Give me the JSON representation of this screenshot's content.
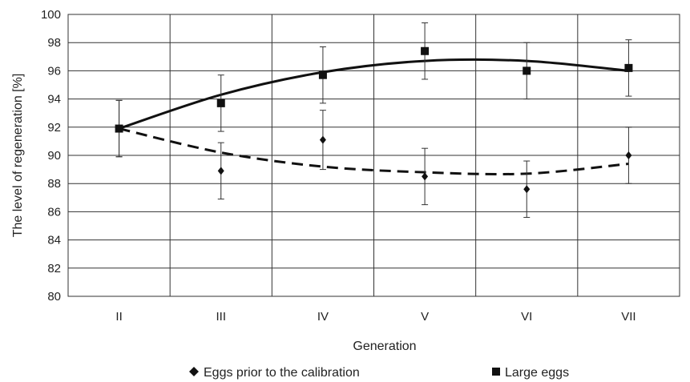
{
  "chart_data": {
    "type": "scatter",
    "xlabel": "Generation",
    "ylabel": "The level of regeneration [%]",
    "categories": [
      "II",
      "III",
      "IV",
      "V",
      "VI",
      "VII"
    ],
    "ylim": [
      80,
      100
    ],
    "yticks": [
      80,
      82,
      84,
      86,
      88,
      90,
      92,
      94,
      96,
      98,
      100
    ],
    "grid": true,
    "legend_position": "bottom",
    "series": [
      {
        "name": "Eggs prior to the calibration",
        "marker": "diamond",
        "line_style": "dashed",
        "color": "#111111",
        "values": [
          91.9,
          88.9,
          91.1,
          88.5,
          87.6,
          90.0
        ],
        "error": [
          2.0,
          2.0,
          2.1,
          2.0,
          2.0,
          2.0
        ],
        "trend": [
          91.9,
          90.2,
          89.2,
          88.8,
          88.7,
          89.4
        ]
      },
      {
        "name": "Large eggs",
        "marker": "square",
        "line_style": "solid",
        "color": "#111111",
        "values": [
          91.9,
          93.7,
          95.7,
          97.4,
          96.0,
          96.2
        ],
        "error": [
          2.0,
          2.0,
          2.0,
          2.0,
          2.0,
          2.0
        ],
        "trend": [
          91.9,
          94.3,
          95.9,
          96.7,
          96.7,
          96.0
        ]
      }
    ]
  }
}
